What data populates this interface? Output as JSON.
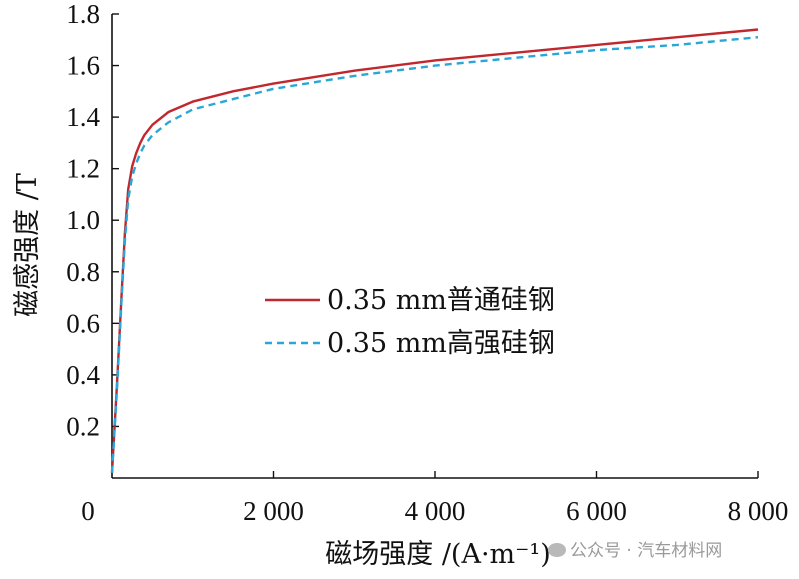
{
  "chart_data": {
    "type": "line",
    "title": "",
    "xlabel": "磁场强度 /(A·m⁻¹)",
    "ylabel": "磁感强度 /T",
    "xlim": [
      0,
      8000
    ],
    "ylim": [
      0,
      1.8
    ],
    "x_ticks": [
      0,
      2000,
      4000,
      6000,
      8000
    ],
    "x_tick_labels": [
      "0",
      "2 000",
      "4 000",
      "6 000",
      "8 000"
    ],
    "y_ticks": [
      0.2,
      0.4,
      0.6,
      0.8,
      1.0,
      1.2,
      1.4,
      1.6,
      1.8
    ],
    "y_tick_labels": [
      "0.2",
      "0.4",
      "0.6",
      "0.8",
      "1.0",
      "1.2",
      "1.4",
      "1.6",
      "1.8"
    ],
    "grid": false,
    "legend_position": "center",
    "series": [
      {
        "name": "0.35 mm普通硅钢",
        "color": "#c0282e",
        "style": "solid",
        "x": [
          0,
          60,
          120,
          160,
          200,
          250,
          300,
          350,
          400,
          500,
          700,
          1000,
          1500,
          2000,
          3000,
          4000,
          5000,
          6000,
          7000,
          8000
        ],
        "y": [
          0.02,
          0.35,
          0.72,
          0.95,
          1.12,
          1.21,
          1.26,
          1.3,
          1.33,
          1.37,
          1.42,
          1.46,
          1.5,
          1.53,
          1.58,
          1.62,
          1.65,
          1.68,
          1.71,
          1.74
        ]
      },
      {
        "name": "0.35 mm高强硅钢",
        "color": "#2aa7d6",
        "style": "dashed",
        "x": [
          0,
          60,
          120,
          160,
          200,
          250,
          300,
          350,
          400,
          500,
          700,
          1000,
          1500,
          2000,
          3000,
          4000,
          5000,
          6000,
          7000,
          8000
        ],
        "y": [
          0.02,
          0.33,
          0.7,
          0.92,
          1.08,
          1.17,
          1.22,
          1.26,
          1.29,
          1.33,
          1.38,
          1.43,
          1.47,
          1.51,
          1.56,
          1.6,
          1.63,
          1.66,
          1.68,
          1.71
        ]
      }
    ]
  },
  "watermark": {
    "text": "公众号 · 汽车材料网",
    "icon": "wechat-icon"
  }
}
